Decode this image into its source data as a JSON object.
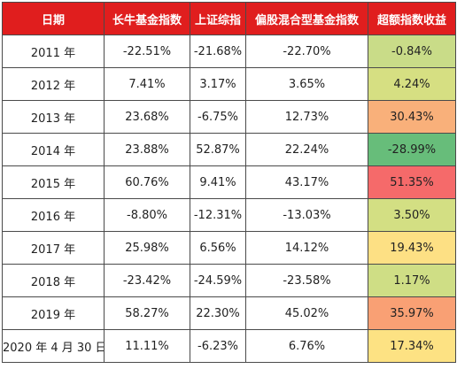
{
  "headers": [
    "日期",
    "长牛基金指数",
    "上证综指",
    "偏股混合型基金指数",
    "超额指数收益"
  ],
  "rows": [
    {
      "date": "2011 年",
      "changniu": "-22.51%",
      "shangzheng": "-21.68%",
      "pianGu": "-22.70%",
      "excess": "-0.84%",
      "excess_color": "#c9dc88"
    },
    {
      "date": "2012 年",
      "changniu": "7.41%",
      "shangzheng": "3.17%",
      "pianGu": "3.65%",
      "excess": "4.24%",
      "excess_color": "#d6df82"
    },
    {
      "date": "2013 年",
      "changniu": "23.68%",
      "shangzheng": "-6.75%",
      "pianGu": "12.73%",
      "excess": "30.43%",
      "excess_color": "#f9b07a"
    },
    {
      "date": "2014 年",
      "changniu": "23.88%",
      "shangzheng": "52.87%",
      "pianGu": "22.24%",
      "excess": "-28.99%",
      "excess_color": "#67bd7a"
    },
    {
      "date": "2015 年",
      "changniu": "60.76%",
      "shangzheng": "9.41%",
      "pianGu": "43.17%",
      "excess": "51.35%",
      "excess_color": "#f56a6a"
    },
    {
      "date": "2016 年",
      "changniu": "-8.80%",
      "shangzheng": "-12.31%",
      "pianGu": "-13.03%",
      "excess": "3.50%",
      "excess_color": "#d3df83"
    },
    {
      "date": "2017 年",
      "changniu": "25.98%",
      "shangzheng": "6.56%",
      "pianGu": "14.12%",
      "excess": "19.43%",
      "excess_color": "#fde084"
    },
    {
      "date": "2018 年",
      "changniu": "-23.42%",
      "shangzheng": "-24.59%",
      "pianGu": "-23.58%",
      "excess": "1.17%",
      "excess_color": "#cfde85"
    },
    {
      "date": "2019 年",
      "changniu": "58.27%",
      "shangzheng": "22.30%",
      "pianGu": "45.02%",
      "excess": "35.97%",
      "excess_color": "#f9a074"
    },
    {
      "date": "2020 年 4 月 30 日",
      "changniu": "11.11%",
      "shangzheng": "-6.23%",
      "pianGu": "6.76%",
      "excess": "17.34%",
      "excess_color": "#fde283"
    }
  ]
}
